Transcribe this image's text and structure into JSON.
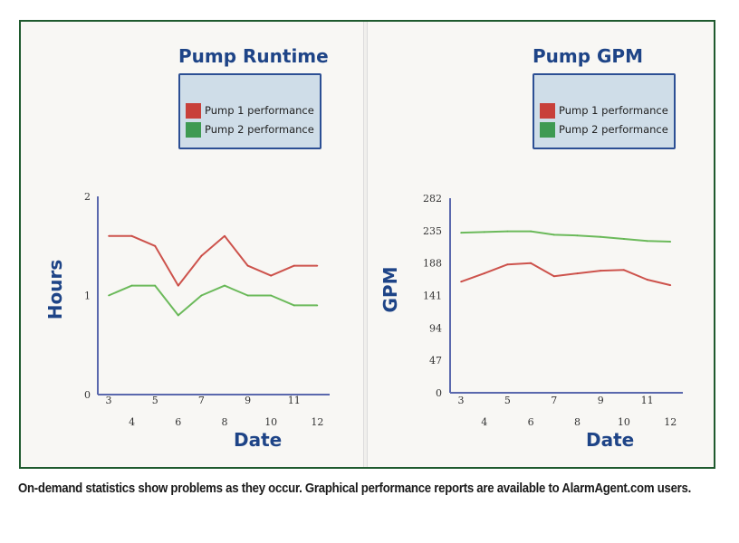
{
  "caption": "On-demand statistics show problems as they occur. Graphical performance reports are available to AlarmAgent.com users.",
  "colors": {
    "frame": "#1f5a2e",
    "title": "#1e4487",
    "axis": "#5a68ad",
    "pump1": "#c8403a",
    "pump2": "#5cb24a",
    "legend_bg": "#cfdde8",
    "legend_border": "#2c4f94"
  },
  "chart_data": [
    {
      "type": "line",
      "title": "Pump Runtime",
      "xlabel": "Date",
      "ylabel": "Hours",
      "x": [
        3,
        4,
        5,
        6,
        7,
        8,
        9,
        10,
        11,
        12
      ],
      "x_tick_labels": [
        "3",
        "4",
        "5",
        "6",
        "7",
        "8",
        "9",
        "10",
        "11",
        "12"
      ],
      "y_ticks": [
        0,
        1,
        2
      ],
      "y_tick_labels": [
        "0",
        "1",
        "2"
      ],
      "ylim": [
        0,
        2
      ],
      "grid": false,
      "legend_position": "top-right",
      "series": [
        {
          "name": "Pump 1 performance",
          "color": "#c8403a",
          "values": [
            1.6,
            1.6,
            1.5,
            1.1,
            1.4,
            1.6,
            1.3,
            1.2,
            1.3,
            1.3
          ]
        },
        {
          "name": "Pump 2 performance",
          "color": "#5cb24a",
          "values": [
            1.0,
            1.1,
            1.1,
            0.8,
            1.0,
            1.1,
            1.0,
            1.0,
            0.9,
            0.9
          ]
        }
      ]
    },
    {
      "type": "line",
      "title": "Pump GPM",
      "xlabel": "Date",
      "ylabel": "GPM",
      "x": [
        3,
        4,
        5,
        6,
        7,
        8,
        9,
        10,
        11,
        12
      ],
      "x_tick_labels": [
        "3",
        "4",
        "5",
        "6",
        "7",
        "8",
        "9",
        "10",
        "11",
        "12"
      ],
      "y_ticks": [
        0,
        47,
        94,
        141,
        188,
        235,
        282
      ],
      "y_tick_labels": [
        "0",
        "47",
        "94",
        "141",
        "188",
        "235",
        "282"
      ],
      "ylim": [
        0,
        282
      ],
      "grid": false,
      "legend_position": "top-right",
      "series": [
        {
          "name": "Pump 1 performance",
          "color": "#c8403a",
          "values": [
            161,
            173,
            186,
            188,
            169,
            173,
            177,
            178,
            164,
            156
          ]
        },
        {
          "name": "Pump 2 performance",
          "color": "#5cb24a",
          "values": [
            232,
            233,
            234,
            234,
            229,
            228,
            226,
            223,
            220,
            219
          ]
        }
      ]
    }
  ]
}
